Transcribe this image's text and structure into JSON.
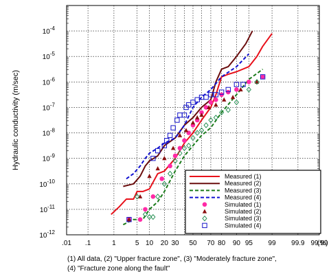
{
  "chart_data": {
    "type": "scatter",
    "xscale": "probability",
    "yscale": "log",
    "ylabel": "Hydraulic conductivity (m/sec)",
    "xunit": "(%)",
    "xlim": [
      0.01,
      99.99
    ],
    "ylim": [
      1e-12,
      0.001
    ],
    "x_ticks": [
      {
        "v": 0.01,
        "label": ".01"
      },
      {
        "v": 0.1,
        "label": ".1"
      },
      {
        "v": 1,
        "label": "1"
      },
      {
        "v": 5,
        "label": "5"
      },
      {
        "v": 10,
        "label": "10"
      },
      {
        "v": 20,
        "label": "20"
      },
      {
        "v": 30,
        "label": "30"
      },
      {
        "v": 50,
        "label": "50"
      },
      {
        "v": 70,
        "label": "70"
      },
      {
        "v": 80,
        "label": "80"
      },
      {
        "v": 90,
        "label": "90"
      },
      {
        "v": 95,
        "label": "95"
      },
      {
        "v": 99,
        "label": "99"
      },
      {
        "v": 99.9,
        "label": "99.9"
      },
      {
        "v": 99.99,
        "label": "99.99"
      }
    ],
    "x_grid": [
      0.01,
      0.1,
      1,
      5,
      10,
      20,
      30,
      40,
      50,
      60,
      70,
      80,
      90,
      95,
      99,
      99.9,
      99.99
    ],
    "y_ticks": [
      {
        "e": -12,
        "label": "10",
        "sup": "-12"
      },
      {
        "e": -11,
        "label": "10",
        "sup": "-11"
      },
      {
        "e": -10,
        "label": "10",
        "sup": "-10"
      },
      {
        "e": -9,
        "label": "10",
        "sup": "-9"
      },
      {
        "e": -8,
        "label": "10",
        "sup": "-8"
      },
      {
        "e": -7,
        "label": "10",
        "sup": "-7"
      },
      {
        "e": -6,
        "label": "10",
        "sup": "-6"
      },
      {
        "e": -5,
        "label": "10",
        "sup": "-5"
      },
      {
        "e": -4,
        "label": "10",
        "sup": "-4"
      }
    ],
    "grid": true,
    "legend_position": "bottom-right",
    "series": [
      {
        "name": "Measured (1)",
        "kind": "line",
        "style": "solid",
        "color": "#e8101a",
        "points": [
          [
            0.8,
            -11.2
          ],
          [
            1.5,
            -10.9
          ],
          [
            2.5,
            -10.6
          ],
          [
            4,
            -10.6
          ],
          [
            5,
            -10.3
          ],
          [
            7,
            -10.3
          ],
          [
            10,
            -10.2
          ],
          [
            15,
            -9.6
          ],
          [
            20,
            -9.5
          ],
          [
            30,
            -9.0
          ],
          [
            40,
            -8.4
          ],
          [
            50,
            -8.0
          ],
          [
            60,
            -7.5
          ],
          [
            70,
            -7.0
          ],
          [
            75,
            -6.5
          ],
          [
            80,
            -5.8
          ],
          [
            85,
            -5.7
          ],
          [
            90,
            -5.6
          ],
          [
            95,
            -5.4
          ],
          [
            97,
            -5.0
          ],
          [
            98,
            -4.6
          ],
          [
            99,
            -4.1
          ]
        ]
      },
      {
        "name": "Measured (2)",
        "kind": "line",
        "style": "solid",
        "color": "#6a0d0d",
        "points": [
          [
            2,
            -10.1
          ],
          [
            4,
            -10.0
          ],
          [
            6,
            -9.7
          ],
          [
            8,
            -9.3
          ],
          [
            10,
            -9.1
          ],
          [
            15,
            -8.9
          ],
          [
            20,
            -8.5
          ],
          [
            30,
            -8.2
          ],
          [
            40,
            -7.7
          ],
          [
            50,
            -7.4
          ],
          [
            60,
            -7.0
          ],
          [
            70,
            -6.7
          ],
          [
            75,
            -6.0
          ],
          [
            80,
            -5.5
          ],
          [
            85,
            -5.4
          ],
          [
            90,
            -5.0
          ],
          [
            94,
            -4.5
          ],
          [
            96,
            -4.0
          ]
        ]
      },
      {
        "name": "Measured (3)",
        "kind": "line",
        "style": "dash",
        "color": "#1a7a1a",
        "points": [
          [
            2,
            -11.6
          ],
          [
            4,
            -11.4
          ],
          [
            7,
            -11.4
          ],
          [
            10,
            -11.0
          ],
          [
            15,
            -10.7
          ],
          [
            20,
            -10.3
          ],
          [
            30,
            -9.5
          ],
          [
            40,
            -8.9
          ],
          [
            50,
            -8.5
          ],
          [
            60,
            -8.1
          ],
          [
            70,
            -7.8
          ],
          [
            80,
            -7.2
          ],
          [
            90,
            -6.5
          ],
          [
            95,
            -5.9
          ],
          [
            98,
            -5.5
          ]
        ]
      },
      {
        "name": "Measured (4)",
        "kind": "line",
        "style": "dash",
        "color": "#1010d0",
        "points": [
          [
            2.5,
            -9.8
          ],
          [
            4,
            -9.6
          ],
          [
            6,
            -9.3
          ],
          [
            8,
            -9.0
          ],
          [
            10,
            -8.8
          ],
          [
            15,
            -8.6
          ],
          [
            20,
            -8.4
          ],
          [
            30,
            -8.2
          ],
          [
            40,
            -7.7
          ],
          [
            50,
            -7.0
          ],
          [
            60,
            -6.6
          ],
          [
            70,
            -6.3
          ],
          [
            80,
            -5.8
          ],
          [
            90,
            -5.4
          ],
          [
            95,
            -4.9
          ]
        ]
      },
      {
        "name": "Simulated (1)",
        "kind": "marker",
        "marker": "circle",
        "color": "#ff2aa6",
        "points": [
          [
            3,
            -11.4
          ],
          [
            6,
            -11.4
          ],
          [
            8,
            -11.0
          ],
          [
            12,
            -10.5
          ],
          [
            18,
            -9.8
          ],
          [
            25,
            -9.3
          ],
          [
            30,
            -8.9
          ],
          [
            35,
            -8.6
          ],
          [
            40,
            -8.3
          ],
          [
            45,
            -8.0
          ],
          [
            50,
            -7.7
          ],
          [
            55,
            -7.5
          ],
          [
            60,
            -7.2
          ],
          [
            65,
            -7.0
          ],
          [
            70,
            -6.8
          ],
          [
            75,
            -6.7
          ],
          [
            80,
            -6.5
          ],
          [
            85,
            -6.4
          ],
          [
            90,
            -6.3
          ],
          [
            95,
            -6.0
          ],
          [
            98,
            -5.8
          ]
        ]
      },
      {
        "name": "Simulated (2)",
        "kind": "marker",
        "marker": "triangle",
        "color": "#8b1010",
        "points": [
          [
            3,
            -11.4
          ],
          [
            6,
            -10.5
          ],
          [
            10,
            -9.7
          ],
          [
            15,
            -9.4
          ],
          [
            20,
            -9.0
          ],
          [
            28,
            -8.6
          ],
          [
            35,
            -8.1
          ],
          [
            42,
            -7.9
          ],
          [
            50,
            -7.6
          ],
          [
            55,
            -7.4
          ],
          [
            60,
            -7.3
          ],
          [
            68,
            -7.0
          ],
          [
            75,
            -6.9
          ],
          [
            82,
            -6.7
          ],
          [
            88,
            -6.6
          ],
          [
            92,
            -6.3
          ],
          [
            97,
            -6.0
          ]
        ]
      },
      {
        "name": "Simulated (3)",
        "kind": "marker",
        "marker": "diamond",
        "color": "#1a8a4a",
        "points": [
          [
            5,
            -10.5
          ],
          [
            8,
            -11.2
          ],
          [
            10,
            -11.3
          ],
          [
            12,
            -11.3
          ],
          [
            15,
            -10.5
          ],
          [
            20,
            -10.0
          ],
          [
            25,
            -9.6
          ],
          [
            30,
            -9.1
          ],
          [
            35,
            -8.8
          ],
          [
            40,
            -8.6
          ],
          [
            45,
            -8.5
          ],
          [
            50,
            -8.2
          ],
          [
            55,
            -8.0
          ],
          [
            60,
            -7.9
          ],
          [
            65,
            -7.7
          ],
          [
            70,
            -7.5
          ],
          [
            75,
            -7.4
          ],
          [
            80,
            -7.2
          ],
          [
            85,
            -7.1
          ],
          [
            90,
            -6.8
          ],
          [
            95,
            -6.3
          ],
          [
            97,
            -6.0
          ]
        ]
      },
      {
        "name": "Simulated (4)",
        "kind": "marker",
        "marker": "square",
        "color": "#1414c8",
        "points": [
          [
            3,
            -11.4
          ],
          [
            12,
            -9.0
          ],
          [
            15,
            -8.7
          ],
          [
            20,
            -8.5
          ],
          [
            22,
            -8.3
          ],
          [
            25,
            -8.1
          ],
          [
            28,
            -7.8
          ],
          [
            32,
            -7.5
          ],
          [
            35,
            -7.3
          ],
          [
            40,
            -7.3
          ],
          [
            42,
            -7.0
          ],
          [
            45,
            -6.9
          ],
          [
            50,
            -6.8
          ],
          [
            55,
            -6.7
          ],
          [
            60,
            -6.6
          ],
          [
            65,
            -6.6
          ],
          [
            70,
            -6.5
          ],
          [
            75,
            -6.5
          ],
          [
            80,
            -6.4
          ],
          [
            85,
            -6.3
          ],
          [
            90,
            -6.1
          ],
          [
            93,
            -6.1
          ],
          [
            98,
            -5.8
          ]
        ]
      }
    ]
  },
  "caption": {
    "line1": "(1) All data, (2) \"Upper fracture zone\", (3) \"Moderately fracture zone\",",
    "line2": "(4) \"Fracture zone along the fault\""
  }
}
